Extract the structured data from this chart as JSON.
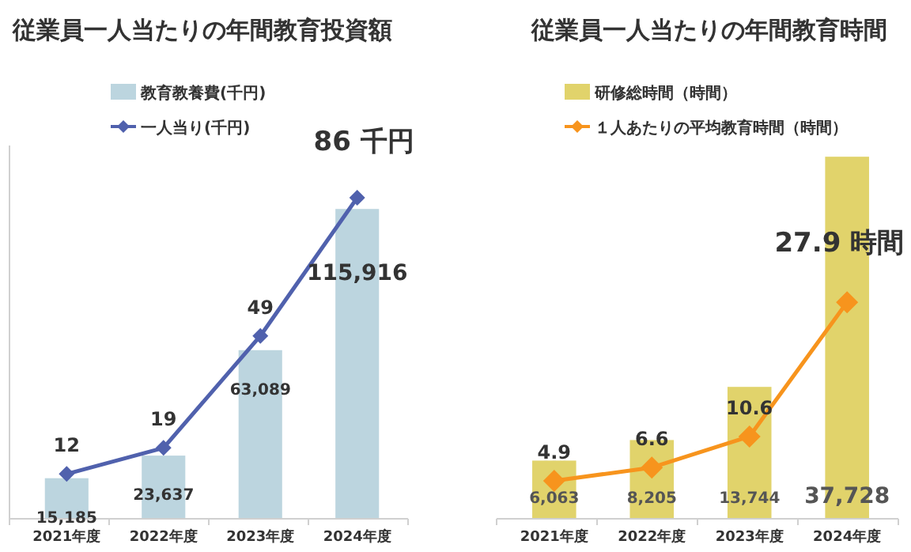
{
  "chart_data": [
    {
      "type": "bar",
      "title": "従業員一人当たりの年間教育投資額",
      "categories": [
        "2021年度",
        "2022年度",
        "2023年度",
        "2024年度"
      ],
      "legend": "top left",
      "data_labels": true,
      "marker": "diamond",
      "series": [
        {
          "name": "教育教養費(千円)",
          "color": "#bcd5df",
          "values": [
            15185,
            23637,
            63089,
            115916
          ],
          "value_labels": [
            "15,185",
            "23,637",
            "63,089",
            "115,916"
          ]
        },
        {
          "name": "一人当り(千円)",
          "type": "line",
          "axis": "y2",
          "color": "#5061ad",
          "values": [
            12,
            19,
            49,
            86
          ],
          "value_labels": [
            "12",
            "19",
            "49",
            "86 千円"
          ]
        }
      ]
    },
    {
      "type": "bar",
      "title": "従業員一人当たりの年間教育時間",
      "categories": [
        "2021年度",
        "2022年度",
        "2023年度",
        "2024年度"
      ],
      "legend": "top left",
      "data_labels": true,
      "marker": "diamond",
      "series": [
        {
          "name": "研修総時間（時間）",
          "color": "#e1d36b",
          "values": [
            6063,
            8205,
            13744,
            37728
          ],
          "value_labels": [
            "6,063",
            "8,205",
            "13,744",
            "37,728"
          ]
        },
        {
          "name": "１人あたりの平均教育時間（時間）",
          "type": "line",
          "axis": "y2",
          "color": "#f7941d",
          "values": [
            4.9,
            6.6,
            10.6,
            27.9
          ],
          "value_labels": [
            "4.9",
            "6.6",
            "10.6",
            "27.9 時間"
          ]
        }
      ]
    }
  ]
}
